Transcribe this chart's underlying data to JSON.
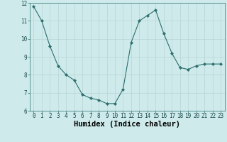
{
  "x": [
    0,
    1,
    2,
    3,
    4,
    5,
    6,
    7,
    8,
    9,
    10,
    11,
    12,
    13,
    14,
    15,
    16,
    17,
    18,
    19,
    20,
    21,
    22,
    23
  ],
  "y": [
    11.8,
    11.0,
    9.6,
    8.5,
    8.0,
    7.7,
    6.9,
    6.7,
    6.6,
    6.4,
    6.4,
    7.2,
    9.8,
    11.0,
    11.3,
    11.6,
    10.3,
    9.2,
    8.4,
    8.3,
    8.5,
    8.6,
    8.6,
    8.6
  ],
  "xlabel": "Humidex (Indice chaleur)",
  "ylim": [
    6,
    12
  ],
  "xlim": [
    -0.5,
    23.5
  ],
  "yticks": [
    6,
    7,
    8,
    9,
    10,
    11,
    12
  ],
  "xticks": [
    0,
    1,
    2,
    3,
    4,
    5,
    6,
    7,
    8,
    9,
    10,
    11,
    12,
    13,
    14,
    15,
    16,
    17,
    18,
    19,
    20,
    21,
    22,
    23
  ],
  "line_color": "#2d6e6e",
  "marker_color": "#2d6e6e",
  "bg_color": "#ceeaea",
  "grid_color_major": "#b8d4d4",
  "grid_color_minor": "#d0e8e8",
  "tick_label_fontsize": 5.5,
  "xlabel_fontsize": 7.5,
  "xlabel_bold": true
}
